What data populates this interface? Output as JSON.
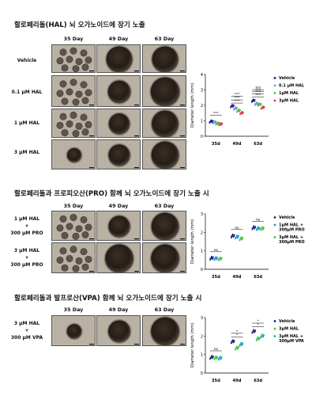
{
  "sections": [
    {
      "title": "할로페리돌(HAL) 뇌 오가노이드에 장기 노출",
      "columns": [
        "35 Day",
        "49 Day",
        "63 Day"
      ],
      "rows": [
        {
          "label": "Vehicle"
        },
        {
          "label": "0.1 μM HAL"
        },
        {
          "label": "1 μM HAL"
        },
        {
          "label": "3 μM HAL"
        }
      ]
    },
    {
      "title": "할로페리돌과 프로피오산(PRO) 함께 뇌 오가노이드에 장기 노출 시",
      "columns": [
        "35 Day",
        "49 Day",
        "63 Day"
      ],
      "rows": [
        {
          "label": "1 μM HAL\n+\n300 μM PRO"
        },
        {
          "label": "3 μM HAL\n+\n300 μM PRO"
        }
      ]
    },
    {
      "title": "할로페리돌과 발프로산(VPA) 함께 뇌 오가노이드에 장기 노출 시",
      "columns": [
        "35 Day",
        "49 Day",
        "63 Day"
      ],
      "rows": [
        {
          "label": "3 μM HAL\n+\n300 μM VPA"
        }
      ]
    }
  ],
  "chart_data": [
    {
      "type": "scatter",
      "ylabel": "Diameter length (mm)",
      "categories": [
        "35d",
        "49d",
        "63d"
      ],
      "ylim": [
        0,
        4
      ],
      "yticks": [
        0,
        1,
        2,
        3,
        4
      ],
      "legend_position": "right",
      "series": [
        {
          "name": "Vehicle",
          "color": "#1a1a80",
          "values": [
            0.95,
            1.95,
            2.3
          ]
        },
        {
          "name": "0.1 μM HAL",
          "color": "#7b8ee8",
          "values": [
            0.9,
            1.8,
            2.1
          ]
        },
        {
          "name": "1μM HAL",
          "color": "#3cc43c",
          "values": [
            0.82,
            1.65,
            2.05
          ]
        },
        {
          "name": "3μM HAL",
          "color": "#e0364a",
          "values": [
            0.78,
            1.5,
            1.85
          ]
        }
      ],
      "annotations": [
        "***",
        "***",
        "***",
        "***",
        "***",
        "***",
        "***",
        "***"
      ]
    },
    {
      "type": "scatter",
      "ylabel": "Diameter length (mm)",
      "categories": [
        "35d",
        "49d",
        "63d"
      ],
      "ylim": [
        0,
        3
      ],
      "yticks": [
        0,
        1,
        2,
        3
      ],
      "legend_position": "right",
      "series": [
        {
          "name": "Vehicle",
          "color": "#1a1a80",
          "values": [
            0.6,
            1.8,
            2.25
          ]
        },
        {
          "name": "1μM HAL +\n300μM PRO",
          "color": "#1a8fe0",
          "values": [
            0.58,
            1.75,
            2.2
          ]
        },
        {
          "name": "3μM HAL +\n300μM PRO",
          "color": "#3cc43c",
          "values": [
            0.56,
            1.65,
            2.2
          ]
        }
      ],
      "annotations": [
        "ns",
        "ns",
        "ns"
      ]
    },
    {
      "type": "scatter",
      "ylabel": "Diameter length (mm)",
      "categories": [
        "35d",
        "49d",
        "63d"
      ],
      "ylim": [
        0,
        3
      ],
      "yticks": [
        0,
        1,
        2,
        3
      ],
      "legend_position": "right",
      "series": [
        {
          "name": "Vehicle",
          "color": "#1a1a80",
          "values": [
            0.85,
            1.7,
            2.25
          ]
        },
        {
          "name": "3μM HAL",
          "color": "#3cc43c",
          "values": [
            0.82,
            1.35,
            1.85
          ]
        },
        {
          "name": "3μM HAL +\n300μM VPA",
          "color": "#1aa0b8",
          "values": [
            0.8,
            1.55,
            2.0
          ]
        }
      ],
      "annotations": [
        "ns",
        "*",
        "*",
        "*",
        "*"
      ]
    }
  ]
}
